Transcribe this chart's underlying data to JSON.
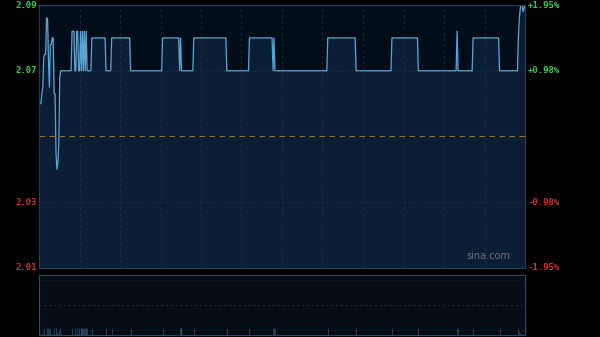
{
  "background_color": "#000000",
  "plot_bg_color": "#030d1a",
  "grid_color": "#1e3f5a",
  "line_color": "#5ba3d0",
  "fill_color": "#0a1f35",
  "ref_line_color": "#b87820",
  "ymin": 2.01,
  "ymax": 2.09,
  "ref_price": 2.05,
  "watermark": "sina.com",
  "n_vgrid": 12,
  "left_labels": [
    {
      "val": 2.09,
      "label": "2.09",
      "color": "#33cc55"
    },
    {
      "val": 2.07,
      "label": "2.07",
      "color": "#33cc55"
    },
    {
      "val": 2.03,
      "label": "2.03",
      "color": "#cc3333"
    },
    {
      "val": 2.01,
      "label": "2.01",
      "color": "#cc3333"
    }
  ],
  "right_labels": [
    {
      "val": 2.09,
      "label": "+1.95%",
      "color": "#33cc55"
    },
    {
      "val": 2.07,
      "label": "+0.98%",
      "color": "#33cc55"
    },
    {
      "val": 2.03,
      "label": "-0.98%",
      "color": "#cc3333"
    },
    {
      "val": 2.01,
      "label": "-1.95%",
      "color": "#cc3333"
    }
  ],
  "mini_bg_color": "#060d14",
  "mini_border_color": "#2a4a6a"
}
